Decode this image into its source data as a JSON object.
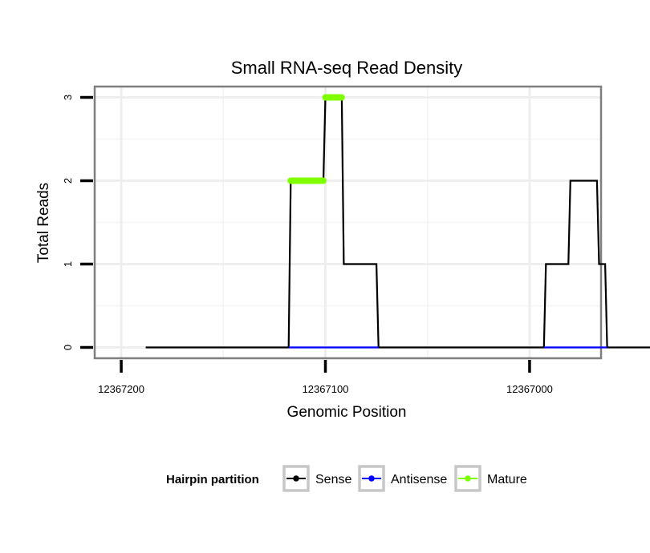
{
  "chart_data": {
    "type": "line",
    "title": "Small RNA-seq Read Density",
    "xlabel": "Genomic Position",
    "ylabel": "Total Reads",
    "x_reversed": true,
    "xlim": [
      12367213,
      12366965
    ],
    "ylim": [
      -0.13,
      3.13
    ],
    "x_ticks": [
      {
        "value": 12367200,
        "label": "12367200"
      },
      {
        "value": 12367100,
        "label": "12367100"
      },
      {
        "value": 12367000,
        "label": "12367000"
      }
    ],
    "y_ticks": [
      {
        "value": 0,
        "label": "0"
      },
      {
        "value": 1,
        "label": "1"
      },
      {
        "value": 2,
        "label": "2"
      },
      {
        "value": 3,
        "label": "3"
      }
    ],
    "grid": true,
    "legend": {
      "title": "Hairpin partition",
      "position": "bottom",
      "entries": [
        {
          "name": "Sense",
          "color": "#000000"
        },
        {
          "name": "Antisense",
          "color": "#0000ff"
        },
        {
          "name": "Mature",
          "color": "#7fff00"
        }
      ]
    },
    "series": [
      {
        "name": "Sense",
        "color": "#000000",
        "x": [
          12367188,
          12367118,
          12367117,
          12367101,
          12367100,
          12367092,
          12367091,
          12367075,
          12367074,
          12366993,
          12366992,
          12366981,
          12366980,
          12366967,
          12366966,
          12366963,
          12366962,
          12366939
        ],
        "y": [
          0,
          0,
          2,
          2,
          3,
          3,
          1,
          1,
          0,
          0,
          1,
          1,
          2,
          2,
          1,
          1,
          0,
          0
        ]
      },
      {
        "name": "Antisense",
        "color": "#0000ff",
        "segments": [
          {
            "x": [
              12367118,
              12367074
            ],
            "y": [
              0,
              0
            ]
          },
          {
            "x": [
              12366993,
              12366962
            ],
            "y": [
              0,
              0
            ]
          }
        ]
      },
      {
        "name": "Mature",
        "color": "#7fff00",
        "segments": [
          {
            "x": [
              12367117,
              12367101
            ],
            "y": [
              2,
              2
            ]
          },
          {
            "x": [
              12367100,
              12367092
            ],
            "y": [
              3,
              3
            ]
          }
        ]
      }
    ]
  }
}
